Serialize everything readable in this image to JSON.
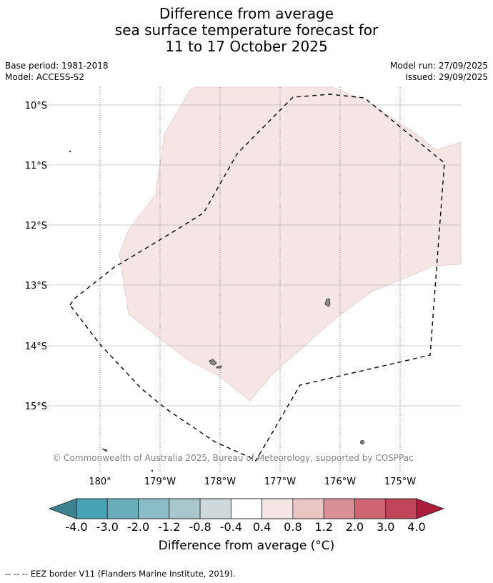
{
  "title": {
    "line1": "Difference from average",
    "line2": "sea surface temperature forecast for",
    "line3": "11 to 17 October 2025"
  },
  "meta": {
    "base_period": "Base period: 1981-2018",
    "model": "Model: ACCESS-S2",
    "model_run": "Model run: 27/09/2025",
    "issued": "Issued: 29/09/2025"
  },
  "map": {
    "lat_labels": [
      "10°S",
      "11°S",
      "12°S",
      "13°S",
      "14°S",
      "15°S"
    ],
    "lon_labels": [
      "180°",
      "179°W",
      "178°W",
      "177°W",
      "176°W",
      "175°W"
    ],
    "copyright": "© Commonwealth of Australia 2025, Bureau of Meteorology, supported by COSPPac",
    "anomaly_fill_color": "#f5e6e5",
    "land_color": "#8c8c8c"
  },
  "colorbar": {
    "title": "Difference from average (°C)",
    "tick_labels": [
      "-4.0",
      "-3.0",
      "-2.0",
      "-1.2",
      "-0.8",
      "-0.4",
      "0.4",
      "0.8",
      "1.2",
      "2.0",
      "3.0",
      "4.0"
    ],
    "under_color": "#3c8290",
    "over_color": "#aa1e3c",
    "colors": [
      "#47a3b4",
      "#68adb9",
      "#8abcc6",
      "#a8c7cb",
      "#cfd8da",
      "#ffffff",
      "#f5e6e5",
      "#e9c6c3",
      "#d88f96",
      "#cd6670",
      "#c0455a"
    ]
  },
  "footnote": "--  --  -- EEZ border V11 (Flanders Marine Institute, 2019)."
}
